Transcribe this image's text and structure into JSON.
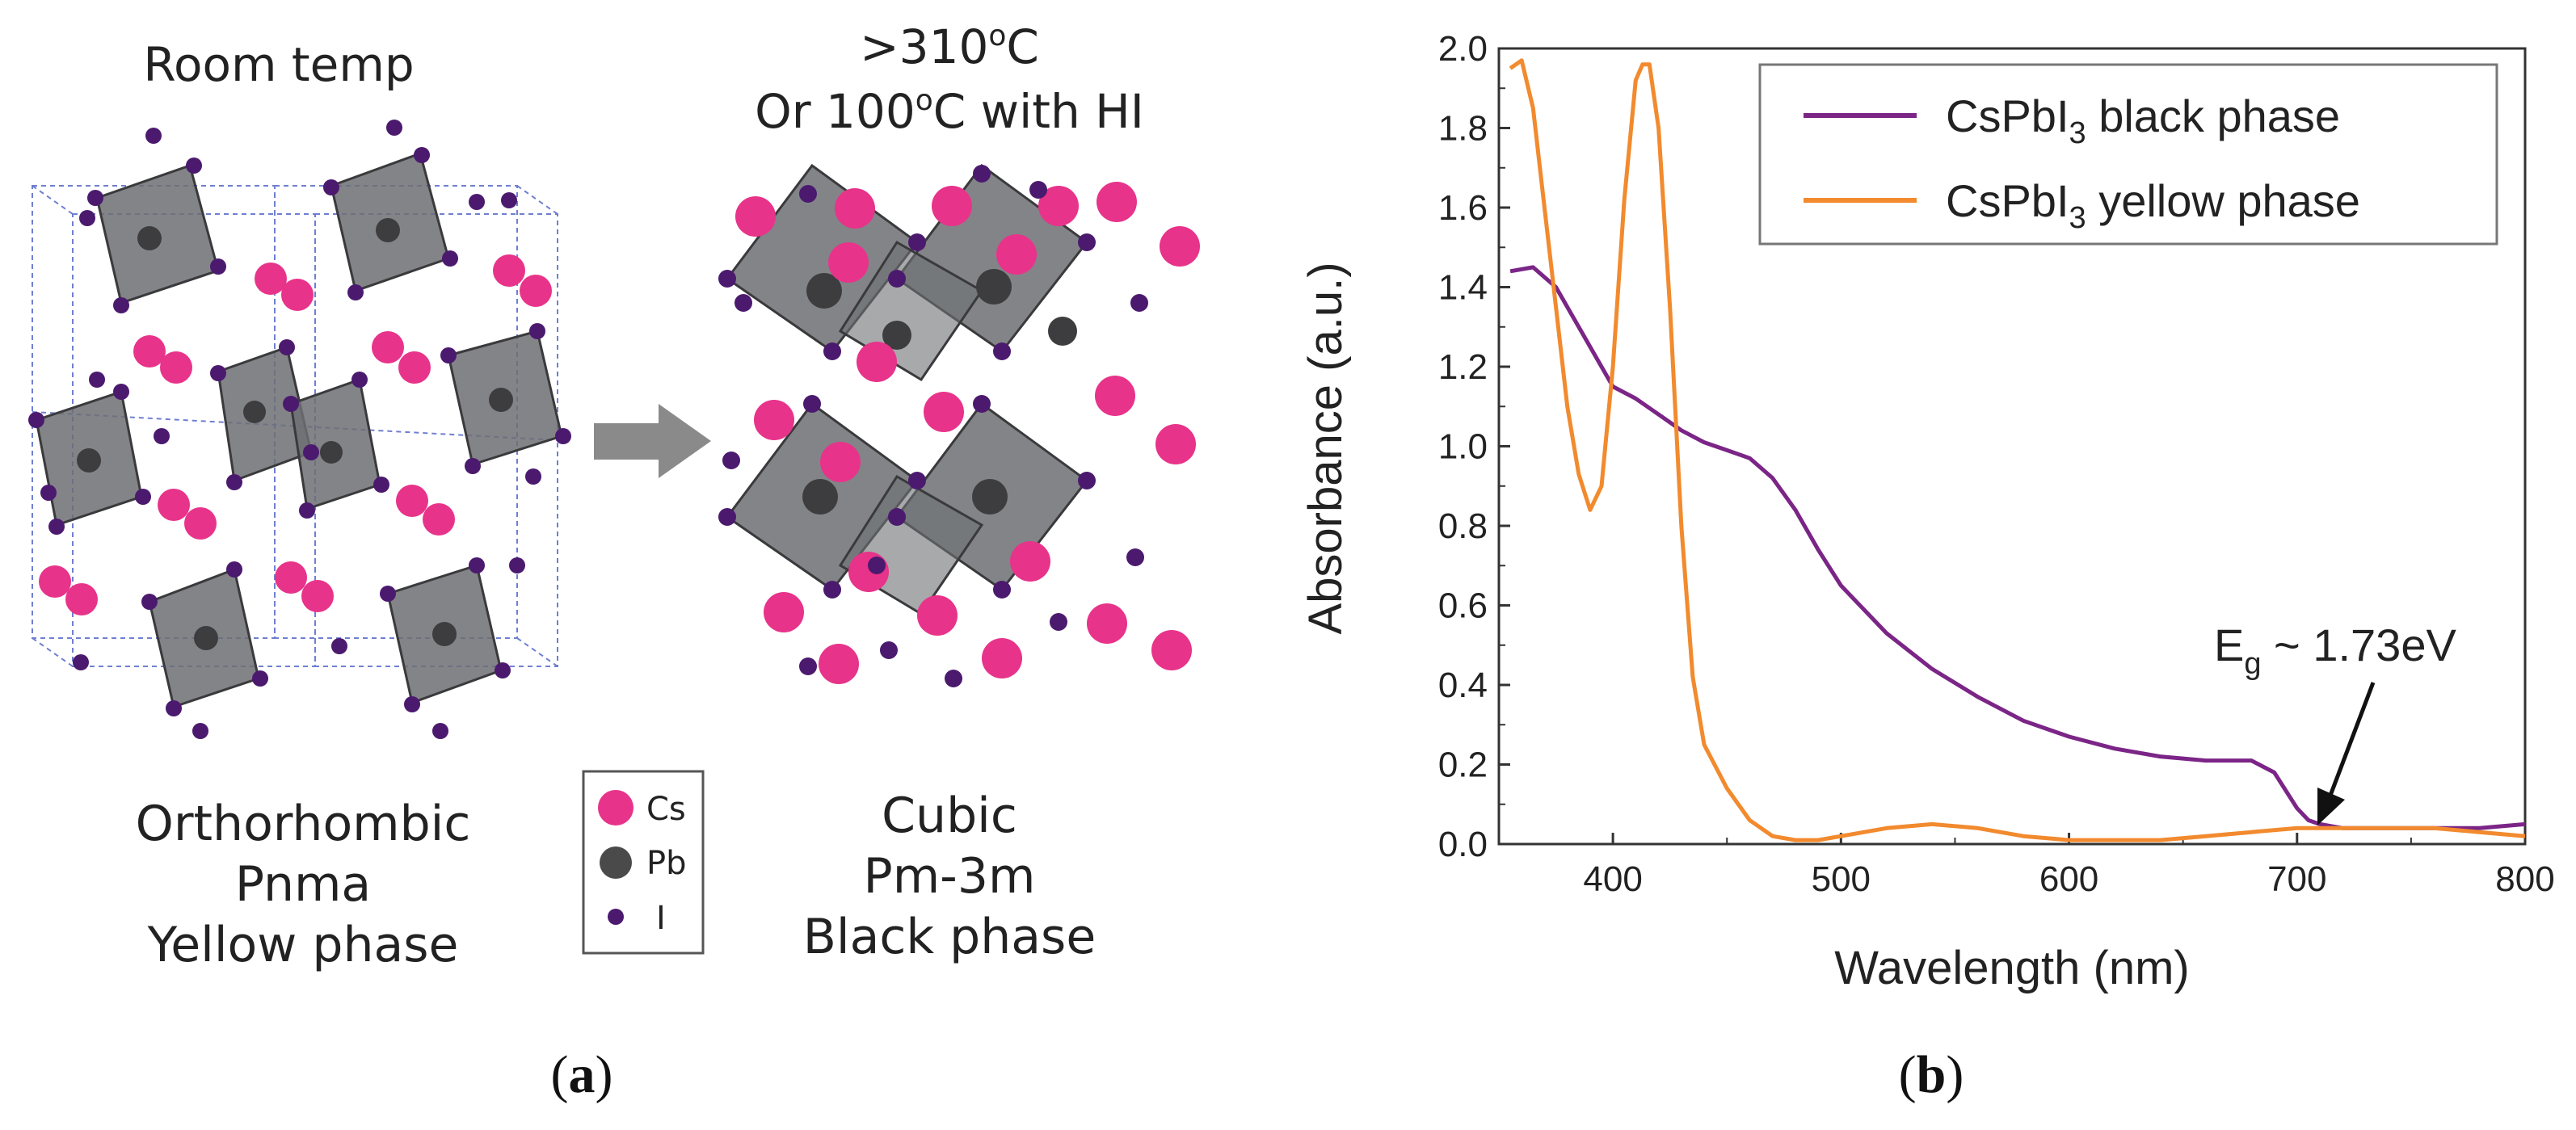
{
  "panel_a": {
    "left_structure": {
      "title": "Room temp",
      "line1": "Orthorhombic",
      "line2": "Pnma",
      "line3": "Yellow phase"
    },
    "right_structure": {
      "title_line1": ">310",
      "title_line1_sup": "o",
      "title_line1_end": "C",
      "title_line2": "Or 100",
      "title_line2_sup": "o",
      "title_line2_end": "C with HI",
      "line1": "Cubic",
      "line2": "Pm-3m",
      "line3": "Black phase"
    },
    "legend": {
      "items": [
        {
          "label": "Cs",
          "color": "#e8338a"
        },
        {
          "label": "Pb",
          "color": "#4a4a4a"
        },
        {
          "label": "I",
          "color": "#4b1a6e"
        }
      ]
    },
    "caption_open": "(",
    "caption_letter": "a",
    "caption_close": ")"
  },
  "panel_b": {
    "caption_open": "(",
    "caption_letter": "b",
    "caption_close": ")",
    "annotation": {
      "prefix": "E",
      "sub": "g",
      "suffix": " ~ 1.73eV"
    }
  },
  "chart_data": {
    "type": "line",
    "xlabel": "Wavelength (nm)",
    "ylabel": "Absorbance (a.u.)",
    "xlim": [
      350,
      800
    ],
    "ylim": [
      0.0,
      2.0
    ],
    "xticks": [
      400,
      500,
      600,
      700,
      800
    ],
    "yticks": [
      0.0,
      0.2,
      0.4,
      0.6,
      0.8,
      1.0,
      1.2,
      1.4,
      1.6,
      1.8,
      2.0
    ],
    "legend_position": "top-right",
    "series": [
      {
        "name_prefix": "CsPbI",
        "name_sub": "3",
        "name_suffix": " black phase",
        "color": "#7b2587",
        "x": [
          355,
          365,
          375,
          385,
          395,
          400,
          410,
          420,
          430,
          440,
          450,
          460,
          470,
          480,
          490,
          500,
          520,
          540,
          560,
          580,
          600,
          620,
          640,
          660,
          680,
          690,
          700,
          705,
          710,
          720,
          740,
          760,
          780,
          800
        ],
        "y": [
          1.44,
          1.45,
          1.4,
          1.3,
          1.2,
          1.15,
          1.12,
          1.08,
          1.04,
          1.01,
          0.99,
          0.97,
          0.92,
          0.84,
          0.74,
          0.65,
          0.53,
          0.44,
          0.37,
          0.31,
          0.27,
          0.24,
          0.22,
          0.21,
          0.21,
          0.18,
          0.09,
          0.06,
          0.05,
          0.04,
          0.04,
          0.04,
          0.04,
          0.05
        ]
      },
      {
        "name_prefix": "CsPbI",
        "name_sub": "3",
        "name_suffix": " yellow phase",
        "color": "#f28a2e",
        "x": [
          355,
          360,
          365,
          370,
          375,
          380,
          385,
          390,
          395,
          400,
          405,
          410,
          413,
          416,
          420,
          425,
          430,
          435,
          440,
          450,
          460,
          470,
          480,
          490,
          500,
          520,
          540,
          560,
          580,
          600,
          620,
          640,
          660,
          680,
          700,
          720,
          740,
          760,
          780,
          800
        ],
        "y": [
          1.95,
          1.97,
          1.85,
          1.6,
          1.35,
          1.1,
          0.93,
          0.84,
          0.9,
          1.2,
          1.62,
          1.92,
          1.96,
          1.96,
          1.8,
          1.35,
          0.8,
          0.42,
          0.25,
          0.14,
          0.06,
          0.02,
          0.01,
          0.01,
          0.02,
          0.04,
          0.05,
          0.04,
          0.02,
          0.01,
          0.01,
          0.01,
          0.02,
          0.03,
          0.04,
          0.04,
          0.04,
          0.04,
          0.03,
          0.02
        ]
      }
    ]
  }
}
